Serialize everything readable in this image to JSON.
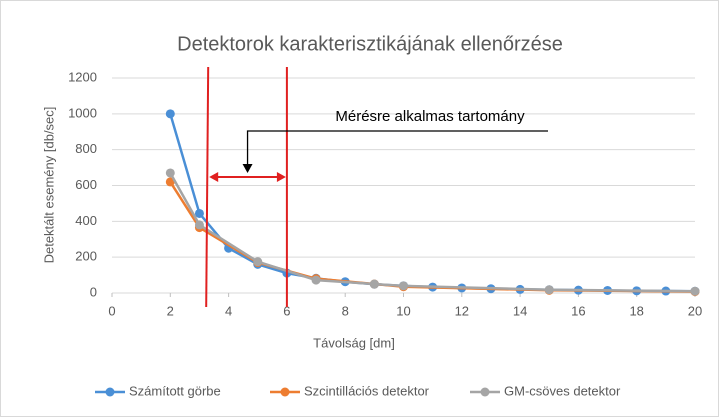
{
  "chart_data": {
    "type": "line",
    "title": "Detektorok karakterisztikájának ellenőrzése",
    "x_label": "Távolság [dm]",
    "y_label": "Detektált esemény [db/sec]",
    "xlim": [
      0,
      20
    ],
    "xticks": [
      0,
      2,
      4,
      6,
      8,
      10,
      12,
      14,
      16,
      18,
      20
    ],
    "ylim": [
      0,
      1200
    ],
    "yticks": [
      0,
      200,
      400,
      600,
      800,
      1000,
      1200
    ],
    "grid": true,
    "legend": "bottom",
    "series": [
      {
        "name": "Számított görbe",
        "color": "#4a8fd6",
        "x": [
          2,
          3,
          4,
          5,
          6,
          7,
          8,
          9,
          10,
          11,
          12,
          13,
          14,
          15,
          16,
          17,
          18,
          19,
          20
        ],
        "values": [
          1000,
          444,
          250,
          160,
          111,
          82,
          63,
          49,
          40,
          33,
          28,
          24,
          20,
          18,
          16,
          14,
          12,
          11,
          10
        ]
      },
      {
        "name": "Szcintillációs detektor",
        "color": "#ed7d31",
        "x": [
          2,
          3,
          5,
          7,
          9,
          10,
          15,
          20
        ],
        "values": [
          620,
          365,
          170,
          80,
          50,
          35,
          15,
          8
        ]
      },
      {
        "name": "GM-csöves detektor",
        "color": "#a5a5a5",
        "x": [
          2,
          3,
          5,
          7,
          9,
          10,
          15,
          20
        ],
        "values": [
          670,
          380,
          175,
          72,
          50,
          40,
          18,
          10
        ]
      }
    ],
    "annotation": {
      "text": "Mérésre alkalmas tartomány",
      "x_range": [
        3.3,
        6
      ],
      "color": "#e02020"
    }
  }
}
